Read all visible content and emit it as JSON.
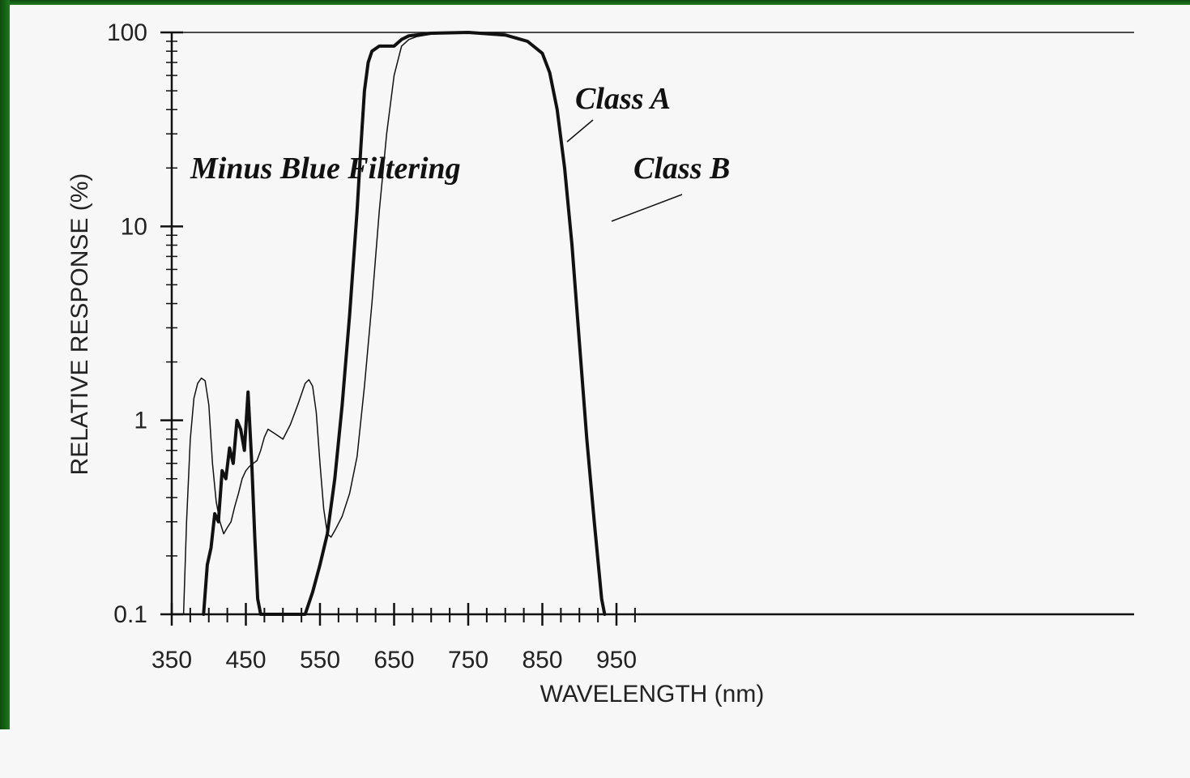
{
  "chart_data": {
    "type": "line",
    "title": "",
    "xlabel": "WAVELENGTH (nm)",
    "ylabel": "RELATIVE RESPONSE (%)",
    "x_ticks": [
      350,
      450,
      550,
      650,
      750,
      850,
      950
    ],
    "y_ticks": [
      0.1,
      1,
      10,
      100
    ],
    "xlim": [
      350,
      1000
    ],
    "ylim": [
      0.1,
      100
    ],
    "yscale": "log",
    "grid": false,
    "annotations": [
      {
        "text": "Minus Blue Filtering"
      },
      {
        "text": "Class A"
      },
      {
        "text": "Class B"
      }
    ],
    "series": [
      {
        "name": "Class A",
        "style": "thick",
        "x": [
          393,
          398,
          403,
          408,
          413,
          418,
          423,
          428,
          433,
          438,
          443,
          448,
          453,
          458,
          462,
          466,
          470,
          480,
          500,
          520,
          530,
          540,
          550,
          560,
          570,
          580,
          590,
          600,
          605,
          610,
          615,
          620,
          630,
          650,
          660,
          670,
          700,
          750,
          800,
          830,
          850,
          860,
          870,
          880,
          890,
          900,
          910,
          920,
          930,
          934
        ],
        "y": [
          0.1,
          0.18,
          0.22,
          0.33,
          0.3,
          0.55,
          0.5,
          0.72,
          0.6,
          1.0,
          0.9,
          0.7,
          1.4,
          0.6,
          0.25,
          0.12,
          0.1,
          0.1,
          0.1,
          0.1,
          0.1,
          0.13,
          0.18,
          0.26,
          0.5,
          1.2,
          3.5,
          12,
          25,
          50,
          70,
          80,
          85,
          85,
          92,
          96,
          99,
          100,
          97,
          90,
          78,
          62,
          40,
          20,
          8,
          2.5,
          0.8,
          0.3,
          0.12,
          0.1
        ]
      },
      {
        "name": "Class B",
        "style": "thin",
        "x": [
          366,
          370,
          375,
          380,
          385,
          390,
          395,
          400,
          405,
          410,
          415,
          420,
          425,
          430,
          435,
          440,
          445,
          450,
          455,
          460,
          465,
          470,
          475,
          480,
          490,
          500,
          510,
          520,
          530,
          535,
          540,
          545,
          550,
          555,
          560,
          565,
          570,
          580,
          590,
          600,
          610,
          620,
          630,
          640,
          650,
          660,
          670,
          680,
          700,
          750,
          800
        ],
        "y": [
          0.1,
          0.3,
          0.8,
          1.3,
          1.55,
          1.65,
          1.6,
          1.2,
          0.6,
          0.38,
          0.3,
          0.26,
          0.28,
          0.3,
          0.36,
          0.42,
          0.5,
          0.55,
          0.58,
          0.6,
          0.62,
          0.7,
          0.82,
          0.9,
          0.85,
          0.8,
          0.95,
          1.2,
          1.55,
          1.62,
          1.5,
          1.1,
          0.6,
          0.35,
          0.26,
          0.25,
          0.27,
          0.32,
          0.42,
          0.65,
          1.5,
          4.0,
          12,
          30,
          60,
          85,
          92,
          95,
          98,
          100,
          100
        ]
      }
    ]
  }
}
